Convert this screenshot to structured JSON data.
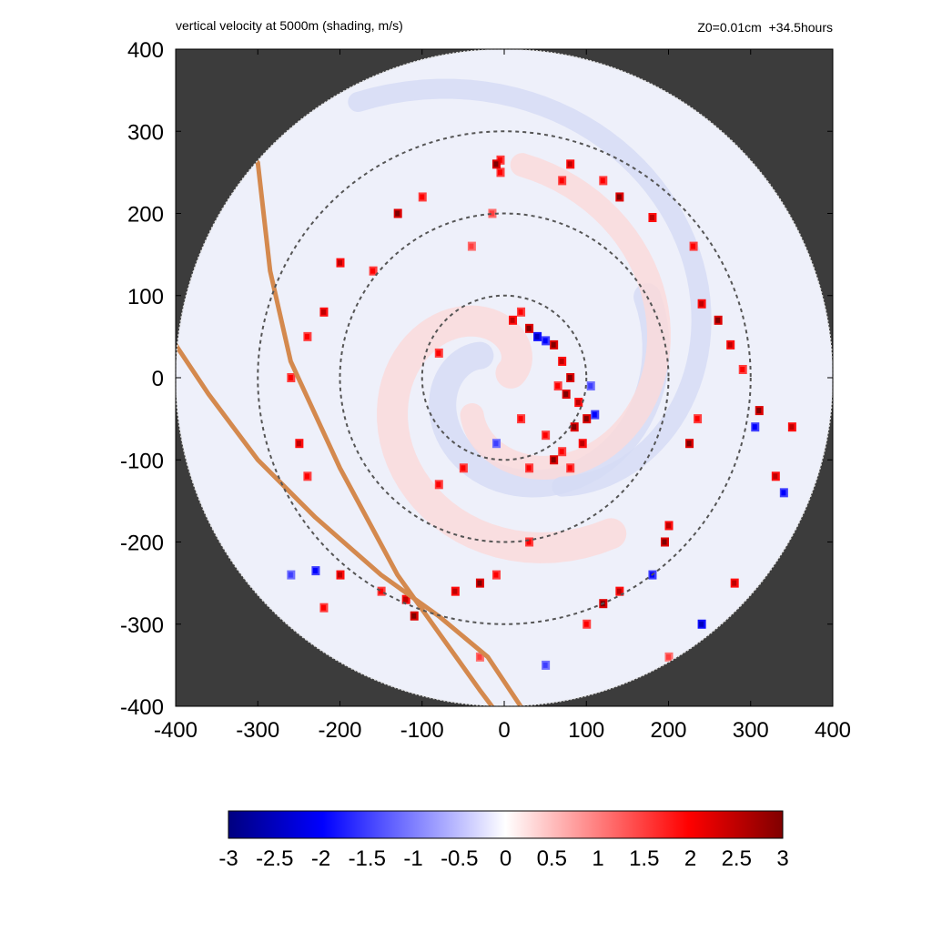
{
  "header": {
    "title_left": "vertical velocity at 5000m (shading, m/s)",
    "title_right": "Z0=0.01cm  +34.5hours"
  },
  "colors": {
    "frame_background": "#3c3c3c",
    "negative_extreme": "#000080",
    "negative_strong": "#0000ff",
    "neutral": "#ffffff",
    "positive_strong": "#ff0000",
    "positive_extreme": "#800000",
    "track_line": "#d4894e",
    "range_ring": "#555555"
  },
  "chart_data": {
    "type": "heatmap",
    "title": "vertical velocity at 5000m (shading, m/s)",
    "annotation": "Z0=0.01cm  +34.5hours",
    "xlim": [
      -400,
      400
    ],
    "ylim": [
      -400,
      400
    ],
    "x_ticks": [
      -400,
      -300,
      -200,
      -100,
      0,
      100,
      200,
      300,
      400
    ],
    "y_ticks": [
      -400,
      -300,
      -200,
      -100,
      0,
      100,
      200,
      300,
      400
    ],
    "x_tick_labels": [
      "-400",
      "-300",
      "-200",
      "-100",
      "0",
      "100",
      "200",
      "300",
      "400"
    ],
    "y_tick_labels": [
      "-400",
      "-300",
      "-200",
      "-100",
      "0",
      "100",
      "200",
      "300",
      "400"
    ],
    "domain_radius": 400,
    "range_rings": [
      100,
      200,
      300
    ],
    "colorbar": {
      "min": -3,
      "max": 3,
      "ticks": [
        -3,
        -2.5,
        -2,
        -1.5,
        -1,
        -0.5,
        0,
        0.5,
        1,
        1.5,
        2,
        2.5,
        3
      ],
      "tick_labels": [
        "-3",
        "-2.5",
        "-2",
        "-1.5",
        "-1",
        "-0.5",
        "0",
        "0.5",
        "1",
        "1.5",
        "2",
        "2.5",
        "3"
      ]
    },
    "tracks": [
      {
        "points": [
          [
            -300,
            262
          ],
          [
            -285,
            130
          ],
          [
            -260,
            20
          ],
          [
            -200,
            -110
          ],
          [
            -130,
            -240
          ],
          [
            -80,
            -310
          ],
          [
            -30,
            -380
          ],
          [
            -15,
            -400
          ]
        ]
      },
      {
        "points": [
          [
            -400,
            40
          ],
          [
            -360,
            -20
          ],
          [
            -300,
            -100
          ],
          [
            -230,
            -170
          ],
          [
            -150,
            -240
          ],
          [
            -80,
            -290
          ],
          [
            -20,
            -340
          ],
          [
            20,
            -400
          ]
        ]
      }
    ],
    "features": {
      "inner_core_cells": [
        [
          10,
          70,
          2.5
        ],
        [
          30,
          60,
          3
        ],
        [
          50,
          45,
          -2
        ],
        [
          60,
          40,
          3
        ],
        [
          70,
          20,
          2.5
        ],
        [
          80,
          0,
          3
        ],
        [
          75,
          -20,
          3
        ],
        [
          90,
          -30,
          2.5
        ],
        [
          100,
          -50,
          3
        ],
        [
          85,
          -60,
          3
        ],
        [
          95,
          -80,
          2.5
        ],
        [
          70,
          -90,
          2
        ],
        [
          60,
          -100,
          3
        ],
        [
          105,
          -10,
          -1.5
        ],
        [
          110,
          -45,
          -2
        ],
        [
          40,
          50,
          -2.5
        ],
        [
          20,
          80,
          2
        ],
        [
          65,
          -10,
          2
        ],
        [
          50,
          -70,
          2
        ],
        [
          -10,
          -80,
          -1.5
        ],
        [
          20,
          -50,
          2
        ],
        [
          -80,
          30,
          2
        ],
        [
          -50,
          -110,
          2
        ],
        [
          30,
          -110,
          2
        ],
        [
          80,
          -110,
          2
        ]
      ],
      "rainband_cells": [
        [
          -5,
          250,
          2
        ],
        [
          80,
          260,
          2.5
        ],
        [
          120,
          240,
          2
        ],
        [
          140,
          220,
          3
        ],
        [
          180,
          195,
          2.5
        ],
        [
          230,
          160,
          2
        ],
        [
          240,
          90,
          2.5
        ],
        [
          260,
          70,
          3
        ],
        [
          275,
          40,
          2.5
        ],
        [
          290,
          10,
          2
        ],
        [
          310,
          -40,
          3
        ],
        [
          305,
          -60,
          -2
        ],
        [
          350,
          -60,
          2.5
        ],
        [
          330,
          -120,
          2.5
        ],
        [
          340,
          -140,
          -2
        ],
        [
          235,
          -50,
          2
        ],
        [
          225,
          -80,
          3
        ],
        [
          200,
          -180,
          2.5
        ],
        [
          195,
          -200,
          3
        ],
        [
          180,
          -240,
          -2
        ],
        [
          140,
          -260,
          2.5
        ],
        [
          120,
          -275,
          3
        ],
        [
          100,
          -300,
          2
        ],
        [
          280,
          -250,
          2.5
        ],
        [
          240,
          -300,
          -2.5
        ],
        [
          270,
          -320,
          2
        ],
        [
          200,
          -340,
          1.5
        ],
        [
          -130,
          200,
          3
        ],
        [
          -100,
          220,
          2
        ],
        [
          -160,
          130,
          2
        ],
        [
          -200,
          140,
          2.5
        ],
        [
          -220,
          80,
          2.5
        ],
        [
          -240,
          50,
          2
        ],
        [
          -260,
          0,
          2
        ],
        [
          -250,
          -80,
          2.5
        ],
        [
          -240,
          -120,
          2
        ],
        [
          -110,
          -290,
          3
        ],
        [
          -120,
          -270,
          2.5
        ],
        [
          -150,
          -260,
          2
        ],
        [
          -200,
          -240,
          2.5
        ],
        [
          -230,
          -235,
          -2
        ],
        [
          -60,
          -260,
          2.5
        ],
        [
          -30,
          -250,
          3
        ],
        [
          -10,
          -240,
          2
        ],
        [
          30,
          -200,
          2
        ],
        [
          -80,
          -130,
          2
        ],
        [
          -30,
          -340,
          1.5
        ],
        [
          50,
          -350,
          -1.5
        ],
        [
          -220,
          -280,
          2
        ],
        [
          -260,
          -240,
          -1.5
        ],
        [
          -5,
          265,
          2
        ],
        [
          -10,
          260,
          3
        ],
        [
          70,
          240,
          2
        ],
        [
          -15,
          200,
          1.5
        ],
        [
          -40,
          160,
          1.5
        ]
      ],
      "spiral_bands": [
        {
          "sign": 1,
          "r0": 10,
          "r1": 230,
          "theta0": 0.6,
          "turns": 0.75
        },
        {
          "sign": -1,
          "r0": 40,
          "r1": 200,
          "theta0": 2.4,
          "turns": 0.7
        },
        {
          "sign": 1,
          "r0": 60,
          "r1": 260,
          "theta0": 4.0,
          "turns": 0.6
        },
        {
          "sign": -1,
          "r0": 150,
          "r1": 380,
          "theta0": 5.2,
          "turns": 0.5
        }
      ]
    }
  }
}
